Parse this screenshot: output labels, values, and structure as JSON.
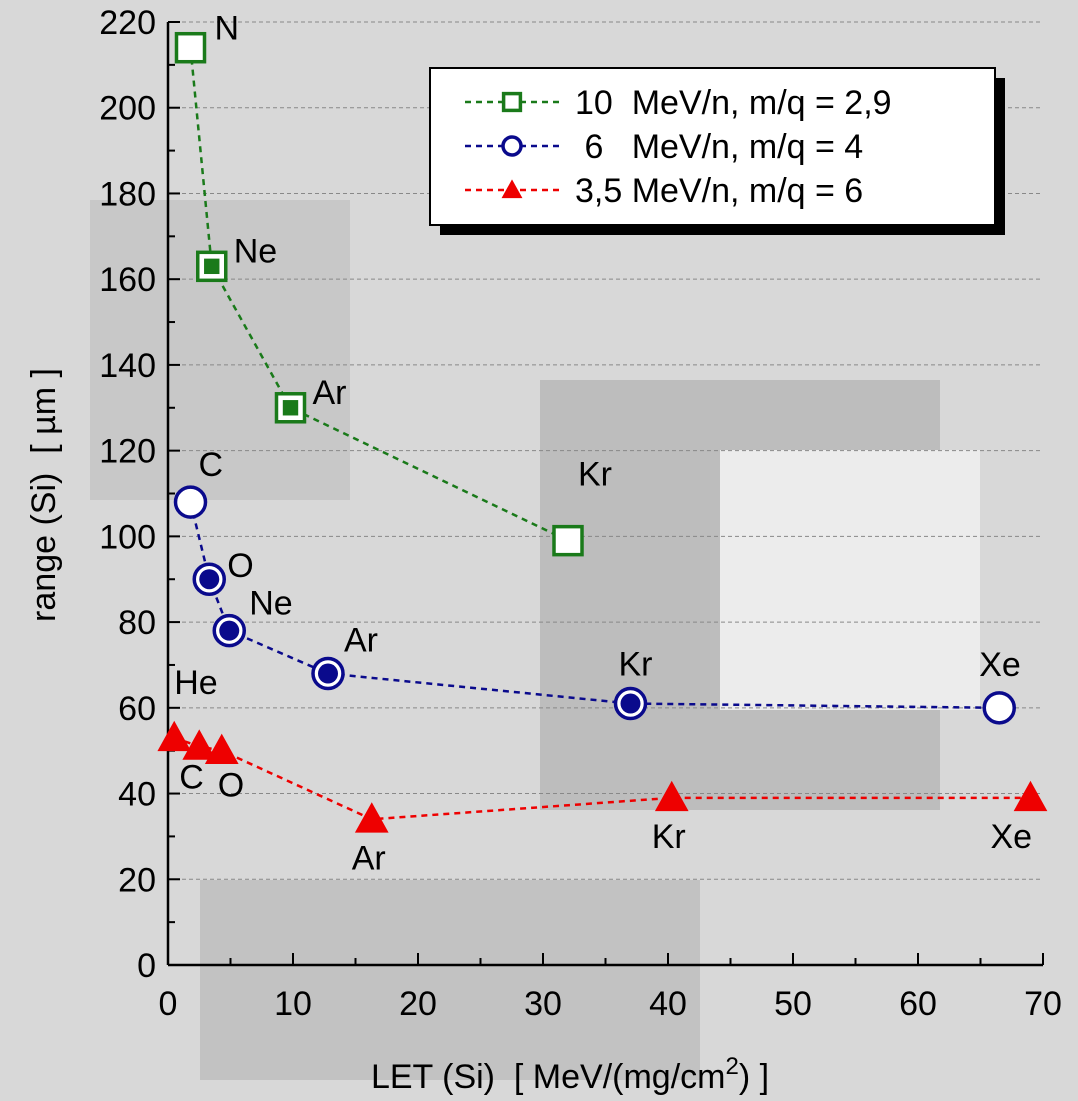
{
  "chart_data": {
    "type": "line",
    "xlabel": [
      "LET (Si)  [ MeV/(mg/cm",
      "2",
      ") ]"
    ],
    "ylabel": "range (Si)  [ µm ]",
    "xlim": [
      0,
      70
    ],
    "xticks": [
      0,
      10,
      20,
      30,
      40,
      50,
      60,
      70
    ],
    "ylim": [
      0,
      220
    ],
    "yticks": [
      0,
      20,
      40,
      60,
      80,
      100,
      120,
      140,
      160,
      180,
      200,
      220
    ],
    "grid": true,
    "legend": "upper right",
    "series": [
      {
        "name": "10  MeV/n, m/q = 2,9",
        "color": "#1a7a1a",
        "marker": "square",
        "x": [
          1.8,
          3.5,
          9.8,
          32
        ],
        "values": [
          214,
          163,
          130,
          99
        ],
        "point_labels": [
          "N",
          "Ne",
          "Ar",
          "Kr"
        ],
        "marker_filled": [
          false,
          true,
          true,
          false
        ]
      },
      {
        "name": " 6   MeV/n, m/q = 4",
        "color": "#0a0a8c",
        "marker": "circle",
        "x": [
          1.8,
          3.3,
          4.9,
          12.8,
          37,
          66.5
        ],
        "values": [
          108,
          90,
          78,
          68,
          61,
          60
        ],
        "point_labels": [
          "C",
          "O",
          "Ne",
          "Ar",
          "Kr",
          "Xe"
        ],
        "marker_filled": [
          false,
          true,
          true,
          true,
          true,
          false
        ]
      },
      {
        "name": "3,5 MeV/n, m/q = 6",
        "color": "#ee0000",
        "marker": "triangle",
        "x": [
          0.5,
          2.5,
          4.3,
          16.3,
          40.3,
          69
        ],
        "values": [
          53,
          51,
          50,
          34,
          39,
          39
        ],
        "point_labels": [
          "He",
          "C",
          "O",
          "Ar",
          "Kr",
          "Xe"
        ],
        "marker_filled": [
          true,
          true,
          true,
          true,
          true,
          true
        ]
      }
    ]
  }
}
